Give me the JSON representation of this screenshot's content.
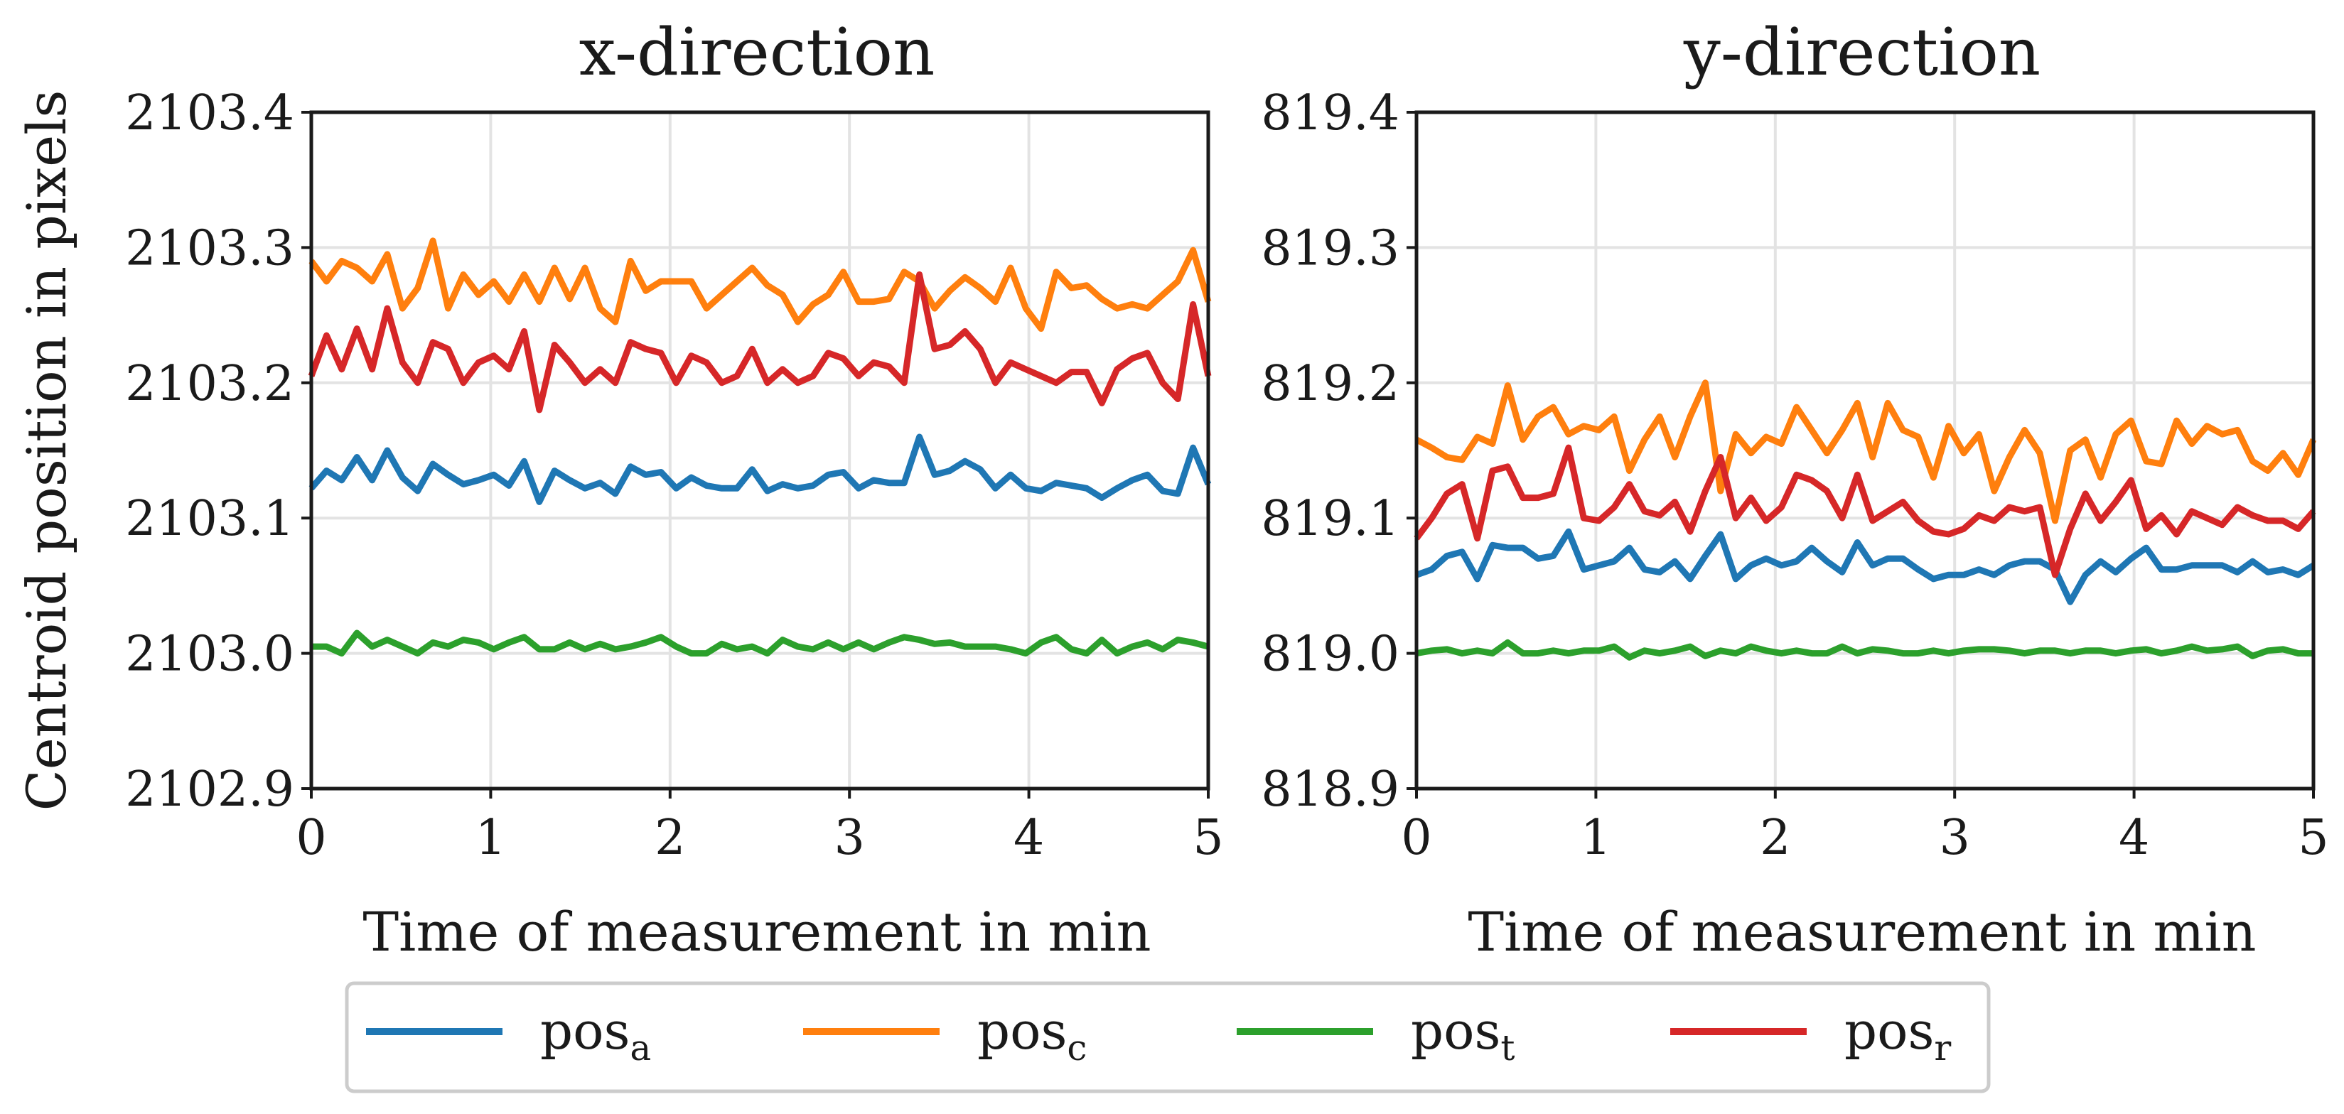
{
  "ylabel_shared": "Centroid position in pixels",
  "chart_data": [
    {
      "type": "line",
      "title": "x-direction",
      "xlabel": "Time of measurement in min",
      "xlim": [
        0,
        5
      ],
      "ylim": [
        2102.9,
        2103.4
      ],
      "xticks": [
        0,
        1,
        2,
        3,
        4,
        5
      ],
      "xtick_labels": [
        "0",
        "1",
        "2",
        "3",
        "4",
        "5"
      ],
      "yticks": [
        2102.9,
        2103.0,
        2103.1,
        2103.2,
        2103.3,
        2103.4
      ],
      "ytick_labels": [
        "2102.9",
        "2103.0",
        "2103.1",
        "2103.2",
        "2103.3",
        "2103.4"
      ],
      "grid": true,
      "series": [
        {
          "name": "pos_a",
          "color": "#1f77b4",
          "values": [
            2103.122,
            2103.135,
            2103.128,
            2103.145,
            2103.128,
            2103.15,
            2103.13,
            2103.12,
            2103.14,
            2103.132,
            2103.125,
            2103.128,
            2103.132,
            2103.124,
            2103.142,
            2103.112,
            2103.135,
            2103.128,
            2103.122,
            2103.126,
            2103.118,
            2103.138,
            2103.132,
            2103.134,
            2103.122,
            2103.13,
            2103.124,
            2103.122,
            2103.122,
            2103.136,
            2103.12,
            2103.125,
            2103.122,
            2103.124,
            2103.132,
            2103.134,
            2103.122,
            2103.128,
            2103.126,
            2103.126,
            2103.16,
            2103.132,
            2103.135,
            2103.142,
            2103.136,
            2103.122,
            2103.132,
            2103.122,
            2103.12,
            2103.126,
            2103.124,
            2103.122,
            2103.115,
            2103.122,
            2103.128,
            2103.132,
            2103.12,
            2103.118,
            2103.152,
            2103.125
          ]
        },
        {
          "name": "pos_c",
          "color": "#ff7f0e",
          "values": [
            2103.29,
            2103.275,
            2103.29,
            2103.285,
            2103.275,
            2103.295,
            2103.255,
            2103.27,
            2103.305,
            2103.255,
            2103.28,
            2103.265,
            2103.275,
            2103.26,
            2103.28,
            2103.26,
            2103.285,
            2103.262,
            2103.285,
            2103.255,
            2103.245,
            2103.29,
            2103.268,
            2103.275,
            2103.275,
            2103.275,
            2103.255,
            2103.265,
            2103.275,
            2103.285,
            2103.272,
            2103.265,
            2103.245,
            2103.258,
            2103.265,
            2103.282,
            2103.26,
            2103.26,
            2103.262,
            2103.282,
            2103.275,
            2103.255,
            2103.268,
            2103.278,
            2103.27,
            2103.26,
            2103.285,
            2103.255,
            2103.24,
            2103.282,
            2103.27,
            2103.272,
            2103.262,
            2103.255,
            2103.258,
            2103.255,
            2103.265,
            2103.275,
            2103.298,
            2103.26
          ]
        },
        {
          "name": "pos_t",
          "color": "#2ca02c",
          "values": [
            2103.005,
            2103.005,
            2103.0,
            2103.015,
            2103.005,
            2103.01,
            2103.005,
            2103.0,
            2103.008,
            2103.005,
            2103.01,
            2103.008,
            2103.003,
            2103.008,
            2103.012,
            2103.003,
            2103.003,
            2103.008,
            2103.003,
            2103.007,
            2103.003,
            2103.005,
            2103.008,
            2103.012,
            2103.005,
            2103.0,
            2103.0,
            2103.007,
            2103.003,
            2103.005,
            2103.0,
            2103.01,
            2103.005,
            2103.003,
            2103.008,
            2103.003,
            2103.008,
            2103.003,
            2103.008,
            2103.012,
            2103.01,
            2103.007,
            2103.008,
            2103.005,
            2103.005,
            2103.005,
            2103.003,
            2103.0,
            2103.008,
            2103.012,
            2103.003,
            2103.0,
            2103.01,
            2103.0,
            2103.005,
            2103.008,
            2103.003,
            2103.01,
            2103.008,
            2103.005
          ]
        },
        {
          "name": "pos_r",
          "color": "#d62728",
          "values": [
            2103.205,
            2103.235,
            2103.21,
            2103.24,
            2103.21,
            2103.255,
            2103.215,
            2103.2,
            2103.23,
            2103.225,
            2103.2,
            2103.215,
            2103.22,
            2103.21,
            2103.238,
            2103.18,
            2103.228,
            2103.215,
            2103.2,
            2103.21,
            2103.2,
            2103.23,
            2103.225,
            2103.222,
            2103.2,
            2103.22,
            2103.215,
            2103.2,
            2103.205,
            2103.225,
            2103.2,
            2103.21,
            2103.2,
            2103.205,
            2103.222,
            2103.218,
            2103.205,
            2103.215,
            2103.212,
            2103.2,
            2103.28,
            2103.225,
            2103.228,
            2103.238,
            2103.225,
            2103.2,
            2103.215,
            2103.21,
            2103.205,
            2103.2,
            2103.208,
            2103.208,
            2103.185,
            2103.21,
            2103.218,
            2103.222,
            2103.2,
            2103.188,
            2103.258,
            2103.205
          ]
        }
      ]
    },
    {
      "type": "line",
      "title": "y-direction",
      "xlabel": "Time of measurement in min",
      "xlim": [
        0,
        5
      ],
      "ylim": [
        818.9,
        819.4
      ],
      "xticks": [
        0,
        1,
        2,
        3,
        4,
        5
      ],
      "xtick_labels": [
        "0",
        "1",
        "2",
        "3",
        "4",
        "5"
      ],
      "yticks": [
        818.9,
        819.0,
        819.1,
        819.2,
        819.3,
        819.4
      ],
      "ytick_labels": [
        "818.9",
        "819.0",
        "819.1",
        "819.2",
        "819.3",
        "819.4"
      ],
      "grid": true,
      "series": [
        {
          "name": "pos_a",
          "color": "#1f77b4",
          "values": [
            819.058,
            819.062,
            819.072,
            819.075,
            819.055,
            819.08,
            819.078,
            819.078,
            819.07,
            819.072,
            819.09,
            819.062,
            819.065,
            819.068,
            819.078,
            819.062,
            819.06,
            819.068,
            819.055,
            819.072,
            819.088,
            819.055,
            819.065,
            819.07,
            819.065,
            819.068,
            819.078,
            819.068,
            819.06,
            819.082,
            819.065,
            819.07,
            819.07,
            819.062,
            819.055,
            819.058,
            819.058,
            819.062,
            819.058,
            819.065,
            819.068,
            819.068,
            819.062,
            819.038,
            819.058,
            819.068,
            819.06,
            819.07,
            819.078,
            819.062,
            819.062,
            819.065,
            819.065,
            819.065,
            819.06,
            819.068,
            819.06,
            819.062,
            819.058,
            819.065
          ]
        },
        {
          "name": "pos_c",
          "color": "#ff7f0e",
          "values": [
            819.158,
            819.152,
            819.145,
            819.143,
            819.16,
            819.155,
            819.198,
            819.158,
            819.175,
            819.182,
            819.162,
            819.168,
            819.165,
            819.175,
            819.135,
            819.158,
            819.175,
            819.145,
            819.175,
            819.2,
            819.12,
            819.162,
            819.148,
            819.16,
            819.155,
            819.182,
            819.165,
            819.148,
            819.165,
            819.185,
            819.145,
            819.185,
            819.165,
            819.16,
            819.13,
            819.168,
            819.148,
            819.162,
            819.12,
            819.145,
            819.165,
            819.148,
            819.098,
            819.15,
            819.158,
            819.13,
            819.162,
            819.172,
            819.142,
            819.14,
            819.172,
            819.155,
            819.168,
            819.162,
            819.165,
            819.142,
            819.135,
            819.148,
            819.132,
            819.158
          ]
        },
        {
          "name": "pos_t",
          "color": "#2ca02c",
          "values": [
            819.0,
            819.002,
            819.003,
            819.0,
            819.002,
            819.0,
            819.008,
            819.0,
            819.0,
            819.002,
            819.0,
            819.002,
            819.002,
            819.005,
            818.997,
            819.002,
            819.0,
            819.002,
            819.005,
            818.998,
            819.002,
            819.0,
            819.005,
            819.002,
            819.0,
            819.002,
            819.0,
            819.0,
            819.005,
            819.0,
            819.003,
            819.002,
            819.0,
            819.0,
            819.002,
            819.0,
            819.002,
            819.003,
            819.003,
            819.002,
            819.0,
            819.002,
            819.002,
            819.0,
            819.002,
            819.002,
            819.0,
            819.002,
            819.003,
            819.0,
            819.002,
            819.005,
            819.002,
            819.003,
            819.005,
            818.998,
            819.002,
            819.003,
            819.0,
            819.0
          ]
        },
        {
          "name": "pos_r",
          "color": "#d62728",
          "values": [
            819.085,
            819.1,
            819.118,
            819.125,
            819.085,
            819.135,
            819.138,
            819.115,
            819.115,
            819.118,
            819.152,
            819.1,
            819.098,
            819.108,
            819.125,
            819.105,
            819.102,
            819.112,
            819.09,
            819.12,
            819.145,
            819.1,
            819.115,
            819.098,
            819.108,
            819.132,
            819.128,
            819.12,
            819.1,
            819.132,
            819.098,
            819.105,
            819.112,
            819.098,
            819.09,
            819.088,
            819.092,
            819.102,
            819.098,
            819.108,
            819.105,
            819.108,
            819.058,
            819.092,
            819.118,
            819.098,
            819.112,
            819.128,
            819.092,
            819.102,
            819.088,
            819.105,
            819.1,
            819.095,
            819.108,
            819.102,
            819.098,
            819.098,
            819.092,
            819.105
          ]
        }
      ]
    }
  ],
  "legend": {
    "placement": "bottom-center",
    "items": [
      {
        "base": "pos",
        "sub": "a",
        "color": "#1f77b4"
      },
      {
        "base": "pos",
        "sub": "c",
        "color": "#ff7f0e"
      },
      {
        "base": "pos",
        "sub": "t",
        "color": "#2ca02c"
      },
      {
        "base": "pos",
        "sub": "r",
        "color": "#d62728"
      }
    ]
  }
}
